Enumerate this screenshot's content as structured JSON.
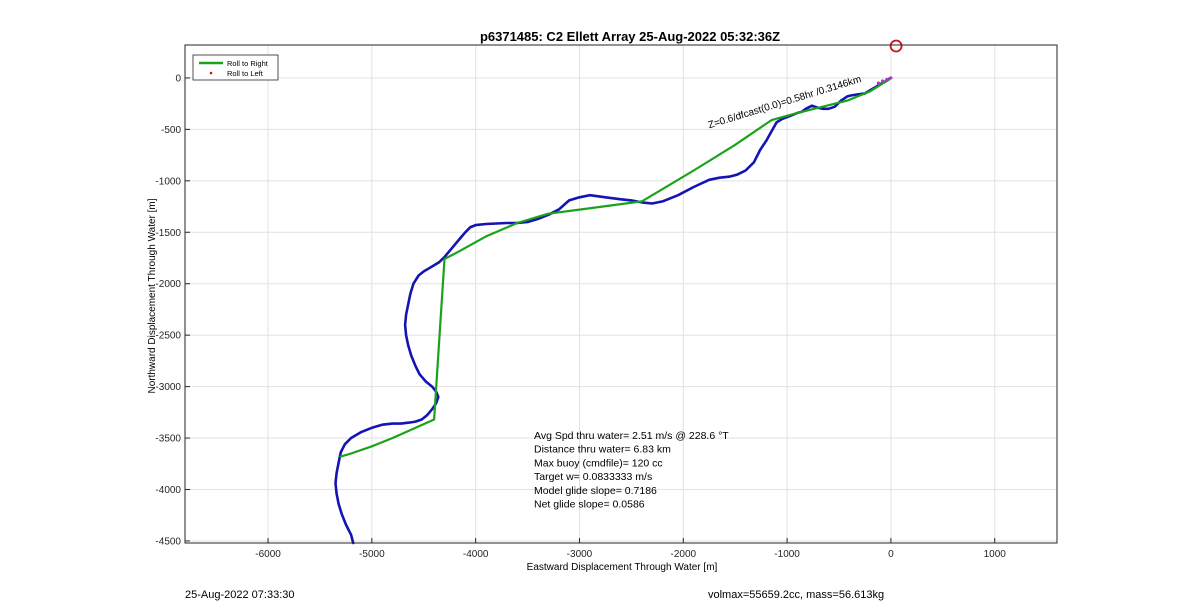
{
  "chart_data": {
    "type": "line",
    "title": "p6371485: C2 Ellett Array 25-Aug-2022 05:32:36Z",
    "xlabel": "Eastward Displacement Through Water [m]",
    "ylabel": "Northward Displacement Through Water [m]",
    "xlim": [
      -6800,
      1600
    ],
    "ylim": [
      -4520,
      320
    ],
    "xticks": [
      -6000,
      -5000,
      -4000,
      -3000,
      -2000,
      -1000,
      0,
      1000
    ],
    "yticks": [
      0,
      -500,
      -1000,
      -1500,
      -2000,
      -2500,
      -3000,
      -3500,
      -4000,
      -4500
    ],
    "grid": true,
    "legend_position": "top-left",
    "legend": [
      {
        "label": "Roll to Right",
        "color": "#1aa31a",
        "style": "line"
      },
      {
        "label": "Roll to Left",
        "color": "#d01010",
        "style": "dot"
      }
    ],
    "series": [
      {
        "color": "#1414b4",
        "x": [
          -4,
          -30,
          -60,
          -100,
          -150,
          -200,
          -250,
          -320,
          -380,
          -420,
          -480,
          -540,
          -600,
          -650,
          -700,
          -760,
          -820,
          -860,
          -900,
          -950,
          -1000,
          -1050,
          -1100,
          -1150,
          -1200,
          -1260,
          -1320,
          -1400,
          -1480,
          -1560,
          -1650,
          -1750,
          -1900,
          -2050,
          -2200,
          -2300,
          -2400,
          -2500,
          -2600,
          -2750,
          -2900,
          -3000,
          -3100,
          -3200,
          -3300,
          -3400,
          -3500,
          -3600,
          -3700,
          -3800,
          -3900,
          -4000,
          -4050,
          -4100,
          -4150,
          -4200,
          -4250,
          -4300,
          -4350,
          -4400,
          -4450,
          -4500,
          -4550,
          -4600,
          -4630,
          -4650,
          -4670,
          -4680,
          -4670,
          -4650,
          -4620,
          -4580,
          -4540,
          -4480,
          -4420,
          -4380,
          -4360,
          -4380,
          -4420,
          -4470,
          -4520,
          -4580,
          -4640,
          -4720,
          -4800,
          -4900,
          -5000,
          -5100,
          -5200,
          -5260,
          -5300,
          -5320,
          -5340,
          -5350,
          -5340,
          -5320,
          -5290,
          -5250,
          -5200,
          -5180
        ],
        "y": [
          0,
          -20,
          -40,
          -60,
          -90,
          -120,
          -150,
          -160,
          -170,
          -180,
          -220,
          -280,
          -300,
          -300,
          -290,
          -270,
          -300,
          -330,
          -340,
          -360,
          -380,
          -400,
          -430,
          -520,
          -610,
          -700,
          -820,
          -900,
          -940,
          -960,
          -970,
          -990,
          -1060,
          -1140,
          -1200,
          -1220,
          -1210,
          -1190,
          -1180,
          -1160,
          -1140,
          -1160,
          -1190,
          -1280,
          -1330,
          -1370,
          -1400,
          -1410,
          -1410,
          -1415,
          -1420,
          -1430,
          -1450,
          -1500,
          -1560,
          -1620,
          -1680,
          -1740,
          -1790,
          -1820,
          -1850,
          -1880,
          -1920,
          -2000,
          -2100,
          -2200,
          -2300,
          -2400,
          -2500,
          -2600,
          -2700,
          -2800,
          -2880,
          -2950,
          -3000,
          -3050,
          -3100,
          -3160,
          -3220,
          -3280,
          -3320,
          -3340,
          -3350,
          -3360,
          -3360,
          -3370,
          -3400,
          -3440,
          -3500,
          -3560,
          -3640,
          -3740,
          -3840,
          -3940,
          -4040,
          -4140,
          -4240,
          -4340,
          -4440,
          -4520
        ]
      },
      {
        "name": "Roll to Right",
        "color": "#1aa31a",
        "x": [
          -10,
          -200,
          -420,
          -700,
          -900,
          -1150,
          -1500,
          -1900,
          -2400,
          -2700,
          -3000,
          -3300,
          -3600,
          -3900,
          -4150,
          -4300,
          -4400,
          -4600,
          -4800,
          -5000,
          -5200,
          -5300
        ],
        "y": [
          -10,
          -130,
          -220,
          -290,
          -340,
          -410,
          -650,
          -900,
          -1200,
          -1240,
          -1280,
          -1320,
          -1410,
          -1540,
          -1680,
          -1760,
          -3320,
          -3410,
          -3500,
          -3580,
          -3650,
          -3680
        ]
      }
    ],
    "annotations": [
      {
        "text": "Avg Spd thru water=  2.51 m/s @ 228.6 °T"
      },
      {
        "text": "Distance thru water=  6.83 km"
      },
      {
        "text": "Max buoy (cmdfile)= 120 cc"
      },
      {
        "text": "Target w= 0.0833333 m/s"
      },
      {
        "text": "Model glide slope= 0.7186"
      },
      {
        "text": "Net glide slope= 0.0586"
      }
    ],
    "rotated_label": {
      "text": "Z=0.6/dfcast(0.0)=0.58hr /0.3146km",
      "anchor_x": -1750,
      "anchor_y": -490,
      "rotation_deg": -17
    },
    "marker": {
      "x": 50,
      "y": 310,
      "color": "#d01010"
    }
  },
  "footer": {
    "timestamp": "25-Aug-2022 07:33:30",
    "stats": "volmax=55659.2cc, mass=56.613kg"
  }
}
